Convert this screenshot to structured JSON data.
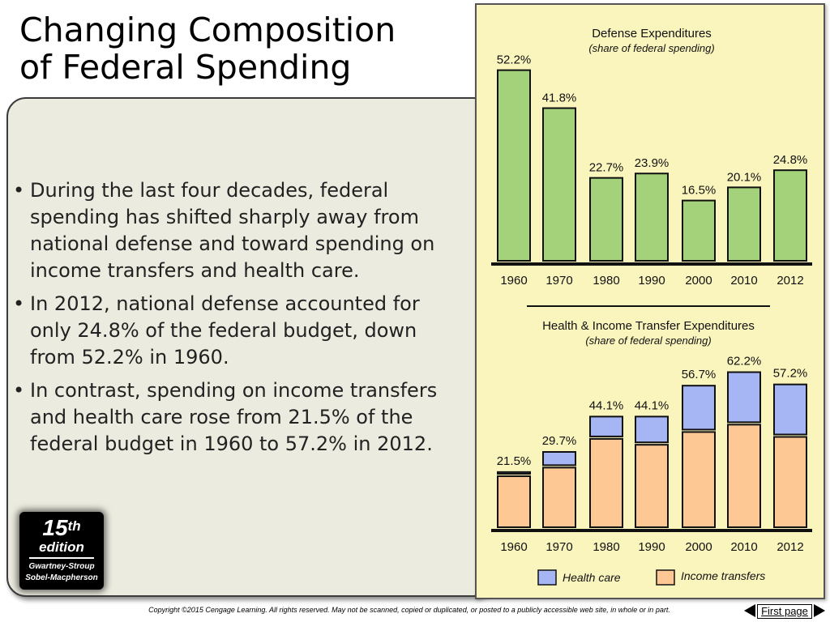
{
  "slide": {
    "title_line1": "Changing Composition",
    "title_line2": "of Federal Spending",
    "bullets": [
      "During the last four decades, federal spending has shifted sharply away from national defense and toward spending on income transfers and health care.",
      "In 2012, national defense accounted for only 24.8% of the federal budget, down from 52.2% in 1960.",
      "In contrast, spending on income transfers and health care rose from 21.5% of the federal budget in 1960 to 57.2% in 2012."
    ],
    "edition": {
      "number": "15",
      "suffix": "th",
      "word": "edition",
      "authors_line1": "Gwartney-Stroup",
      "authors_line2": "Sobel-Macpherson"
    },
    "footer": {
      "copyright": "Copyright ©2015 Cengage Learning. All rights reserved. May not be scanned, copied or duplicated, or posted to a publicly accessible web site, in whole or in part.",
      "first_page_label": "First page",
      "prev_icon": "triangle-left-icon",
      "next_icon": "triangle-right-icon"
    }
  },
  "colors": {
    "panel_bg": "#faf5bd",
    "defense_bar": "#a4d27a",
    "income_transfers": "#fdc894",
    "health_care": "#a6b5f4",
    "text_panel_bg": "#ecebdf"
  },
  "chart_data": [
    {
      "type": "bar",
      "title": "Defense Expenditures",
      "subtitle": "(share of federal spending)",
      "categories": [
        "1960",
        "1970",
        "1980",
        "1990",
        "2000",
        "2010",
        "2012"
      ],
      "values": [
        52.2,
        41.8,
        22.7,
        23.9,
        16.5,
        20.1,
        24.8
      ],
      "value_labels": [
        "52.2%",
        "41.8%",
        "22.7%",
        "23.9%",
        "16.5%",
        "20.1%",
        "24.8%"
      ],
      "ylim": [
        0,
        55
      ],
      "grid": false
    },
    {
      "type": "bar",
      "stacked": true,
      "title": "Health & Income Transfer Expenditures",
      "subtitle": "(share of federal spending)",
      "categories": [
        "1960",
        "1970",
        "1980",
        "1990",
        "2000",
        "2010",
        "2012"
      ],
      "series": [
        {
          "name": "Income transfers",
          "values": [
            20.8,
            24.3,
            36.0,
            33.6,
            38.8,
            41.8,
            36.8
          ]
        },
        {
          "name": "Health care",
          "values": [
            0.7,
            5.4,
            8.1,
            10.5,
            17.9,
            20.4,
            20.4
          ]
        }
      ],
      "totals": [
        21.5,
        29.7,
        44.1,
        44.1,
        56.7,
        62.2,
        57.2
      ],
      "total_labels": [
        "21.5%",
        "29.7%",
        "44.1%",
        "44.1%",
        "56.7%",
        "62.2%",
        "57.2%"
      ],
      "legend": [
        "Health care",
        "Income transfers"
      ],
      "legend_placement": "bottom",
      "ylim": [
        0,
        66
      ],
      "grid": false
    }
  ]
}
